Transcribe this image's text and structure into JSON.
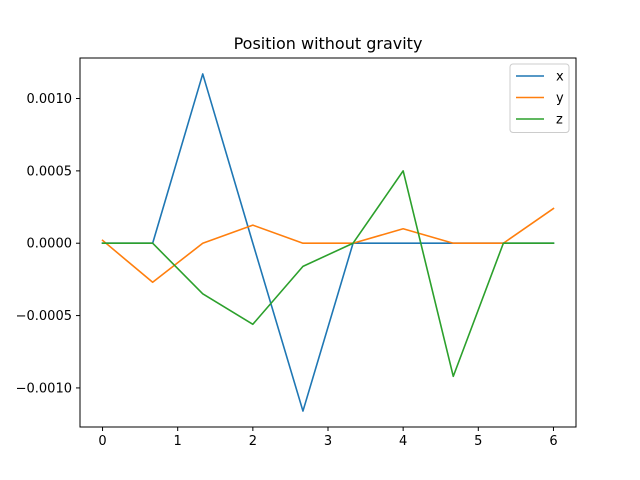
{
  "chart_data": {
    "type": "line",
    "title": "Position without gravity",
    "xlabel": "",
    "ylabel": "",
    "x": [
      0,
      0.6667,
      1.3333,
      2.0,
      2.6667,
      3.3333,
      4.0,
      4.6667,
      5.3333,
      6.0
    ],
    "xlim": [
      -0.3,
      6.3
    ],
    "ylim": [
      -0.00127,
      0.00128
    ],
    "xticks": [
      0,
      1,
      2,
      3,
      4,
      5,
      6
    ],
    "xtick_labels": [
      "0",
      "1",
      "2",
      "3",
      "4",
      "5",
      "6"
    ],
    "yticks": [
      -0.001,
      -0.0005,
      0.0,
      0.0005,
      0.001
    ],
    "ytick_labels": [
      "−0.0010",
      "−0.0005",
      "0.0000",
      "0.0005",
      "0.0010"
    ],
    "grid": false,
    "legend_position": "top-right",
    "series": [
      {
        "name": "x",
        "color": "#1f77b4",
        "values": [
          0.0,
          0.0,
          0.00117,
          0.0,
          -0.00116,
          0.0,
          0.0,
          0.0,
          0.0,
          0.0
        ]
      },
      {
        "name": "y",
        "color": "#ff7f0e",
        "values": [
          2e-05,
          -0.00027,
          0.0,
          0.000125,
          0.0,
          0.0,
          0.0001,
          0.0,
          0.0,
          0.00024
        ]
      },
      {
        "name": "z",
        "color": "#2ca02c",
        "values": [
          0.0,
          0.0,
          -0.00035,
          -0.00056,
          -0.00016,
          0.0,
          0.0005,
          -0.00092,
          0.0,
          0.0
        ]
      }
    ]
  }
}
